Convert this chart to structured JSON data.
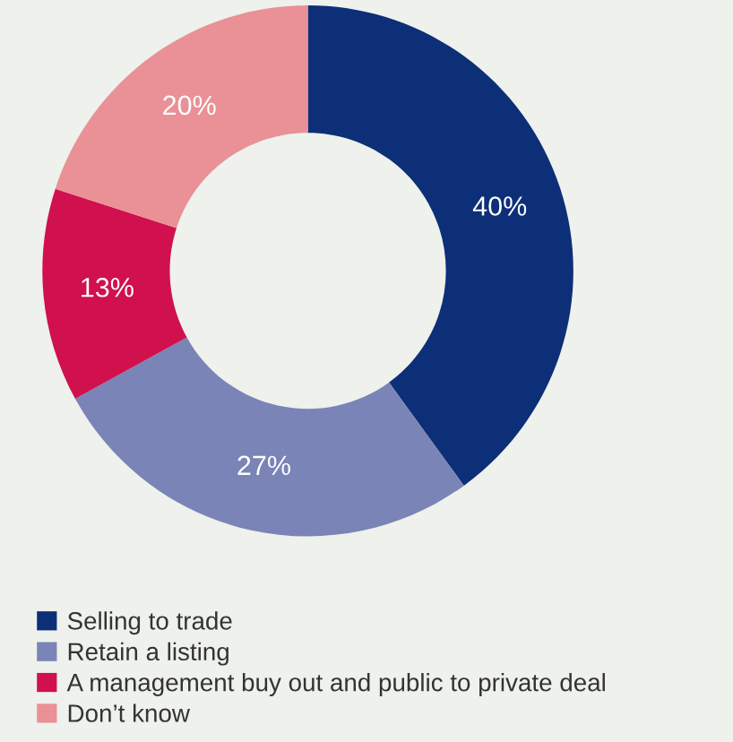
{
  "chart_data": {
    "type": "donut",
    "categories": [
      "Selling to trade",
      "Retain a listing",
      "A management buy out and public to private deal",
      "Don’t know"
    ],
    "values": [
      40,
      27,
      13,
      20
    ],
    "colors": [
      "#0d2f78",
      "#7a84b6",
      "#d0114d",
      "#e99196"
    ],
    "value_labels": [
      "40%",
      "27%",
      "13%",
      "20%"
    ],
    "legend": "bottom"
  }
}
